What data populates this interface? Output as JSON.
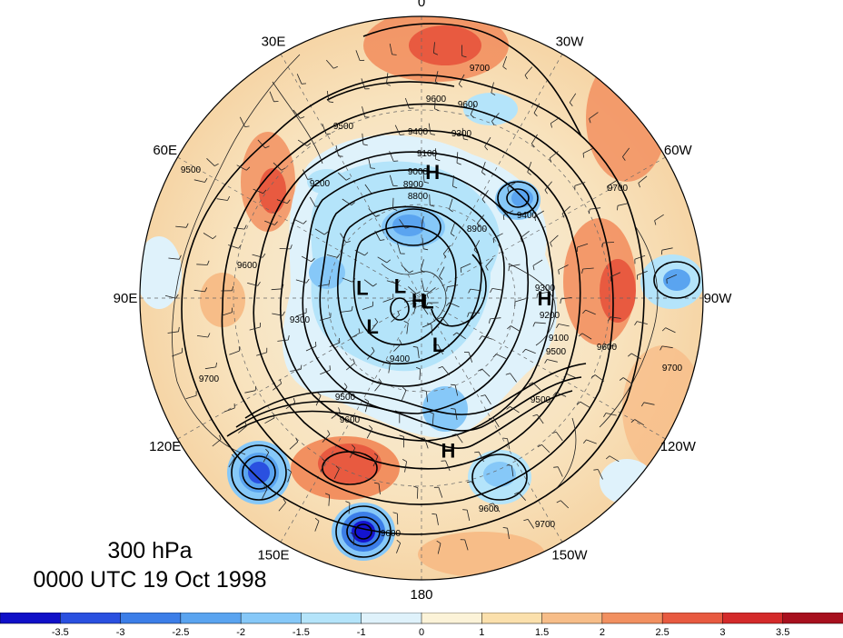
{
  "title": {
    "level": "300 hPa",
    "time": "0000 UTC 19 Oct 1998"
  },
  "longitude_labels": [
    {
      "text": "0",
      "angle": 0
    },
    {
      "text": "30W",
      "angle": 30
    },
    {
      "text": "60W",
      "angle": 60
    },
    {
      "text": "90W",
      "angle": 90
    },
    {
      "text": "120W",
      "angle": 120
    },
    {
      "text": "150W",
      "angle": 150
    },
    {
      "text": "180",
      "angle": 180
    },
    {
      "text": "150E",
      "angle": 210
    },
    {
      "text": "120E",
      "angle": 240
    },
    {
      "text": "90E",
      "angle": 270
    },
    {
      "text": "60E",
      "angle": 300
    },
    {
      "text": "30E",
      "angle": 330
    }
  ],
  "pressure_centers": [
    {
      "label": "H",
      "lon_deg": 5,
      "lat_deg": 55
    },
    {
      "label": "H",
      "lon_deg": 90,
      "lat_deg": 56
    },
    {
      "label": "H",
      "lon_deg": 170,
      "lat_deg": 48
    },
    {
      "label": "H",
      "lon_deg": 230,
      "lat_deg": 89
    },
    {
      "label": "L",
      "lon_deg": 280,
      "lat_deg": 73
    },
    {
      "label": "L",
      "lon_deg": 300,
      "lat_deg": 83
    },
    {
      "label": "L",
      "lon_deg": 115,
      "lat_deg": 88
    },
    {
      "label": "L",
      "lon_deg": 240,
      "lat_deg": 74
    },
    {
      "label": "L",
      "lon_deg": 160,
      "lat_deg": 76
    }
  ],
  "contour_labels": [
    "9700",
    "9600",
    "9600",
    "9500",
    "9400",
    "9300",
    "9200",
    "9100",
    "9000",
    "8900",
    "8800",
    "9500",
    "9600",
    "9700",
    "9700",
    "9600",
    "9700",
    "9500",
    "9400",
    "9300",
    "8900",
    "9700",
    "9600",
    "9500",
    "9400",
    "9300",
    "9200",
    "9100",
    "9600",
    "9500",
    "9600"
  ],
  "colorbar": {
    "ticks": [
      "-3.5",
      "-3",
      "-2.5",
      "-2",
      "-1.5",
      "-1",
      "0",
      "1",
      "1.5",
      "2",
      "2.5",
      "3",
      "3.5"
    ],
    "colors": [
      "#1010c8",
      "#2a50e0",
      "#3c7ee8",
      "#5aa4f0",
      "#86c8f8",
      "#b4e4fa",
      "#dff2fb",
      "#fcf3d8",
      "#fbe0ac",
      "#f7bd88",
      "#f29060",
      "#e85a40",
      "#d42a2a",
      "#a8101e"
    ]
  },
  "colors": {
    "contour": "#000000",
    "background_warm": "#f9e6c4",
    "strong_low": "#1414d0",
    "strong_high": "#e04038"
  }
}
